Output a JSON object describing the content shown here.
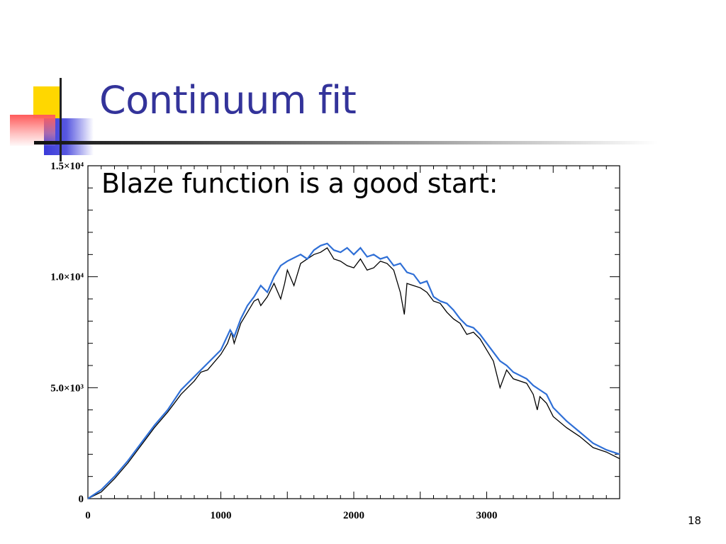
{
  "slide": {
    "title": "Continuum fit",
    "subtitle": "Blaze function is a good start:",
    "page_number": "18"
  },
  "colors": {
    "title": "#33339a",
    "spectrum": "#000000",
    "continuum": "#2f6fd6"
  },
  "chart_data": {
    "type": "line",
    "xlim": [
      0,
      4000
    ],
    "ylim": [
      0,
      15000
    ],
    "x_ticks": [
      {
        "value": 0,
        "label": "0"
      },
      {
        "value": 1000,
        "label": "1000"
      },
      {
        "value": 2000,
        "label": "2000"
      },
      {
        "value": 3000,
        "label": "3000"
      }
    ],
    "y_ticks": [
      {
        "value": 0,
        "label": "0"
      },
      {
        "value": 5000,
        "label": "5.0×10³"
      },
      {
        "value": 10000,
        "label": "1.0×10⁴"
      },
      {
        "value": 15000,
        "label": "1.5×10⁴"
      }
    ],
    "series": [
      {
        "role": "spectrum",
        "points": [
          [
            0,
            0
          ],
          [
            100,
            300
          ],
          [
            200,
            900
          ],
          [
            300,
            1600
          ],
          [
            400,
            2400
          ],
          [
            500,
            3200
          ],
          [
            600,
            3900
          ],
          [
            650,
            4300
          ],
          [
            700,
            4700
          ],
          [
            800,
            5300
          ],
          [
            850,
            5700
          ],
          [
            900,
            5800
          ],
          [
            1000,
            6500
          ],
          [
            1050,
            7000
          ],
          [
            1080,
            7500
          ],
          [
            1100,
            7000
          ],
          [
            1150,
            7900
          ],
          [
            1200,
            8400
          ],
          [
            1250,
            8900
          ],
          [
            1280,
            9000
          ],
          [
            1300,
            8700
          ],
          [
            1350,
            9100
          ],
          [
            1400,
            9700
          ],
          [
            1450,
            9000
          ],
          [
            1480,
            9700
          ],
          [
            1500,
            10300
          ],
          [
            1550,
            9600
          ],
          [
            1600,
            10600
          ],
          [
            1650,
            10800
          ],
          [
            1700,
            11000
          ],
          [
            1750,
            11100
          ],
          [
            1800,
            11300
          ],
          [
            1850,
            10800
          ],
          [
            1900,
            10700
          ],
          [
            1950,
            10500
          ],
          [
            2000,
            10400
          ],
          [
            2050,
            10800
          ],
          [
            2100,
            10300
          ],
          [
            2150,
            10400
          ],
          [
            2200,
            10700
          ],
          [
            2250,
            10600
          ],
          [
            2300,
            10300
          ],
          [
            2350,
            9300
          ],
          [
            2380,
            8300
          ],
          [
            2400,
            9700
          ],
          [
            2450,
            9600
          ],
          [
            2500,
            9500
          ],
          [
            2550,
            9300
          ],
          [
            2600,
            8900
          ],
          [
            2650,
            8800
          ],
          [
            2700,
            8400
          ],
          [
            2750,
            8100
          ],
          [
            2800,
            7900
          ],
          [
            2850,
            7400
          ],
          [
            2900,
            7500
          ],
          [
            2950,
            7200
          ],
          [
            3000,
            6700
          ],
          [
            3050,
            6200
          ],
          [
            3100,
            5000
          ],
          [
            3150,
            5800
          ],
          [
            3200,
            5400
          ],
          [
            3300,
            5200
          ],
          [
            3350,
            4700
          ],
          [
            3380,
            4000
          ],
          [
            3400,
            4600
          ],
          [
            3450,
            4300
          ],
          [
            3500,
            3700
          ],
          [
            3600,
            3200
          ],
          [
            3700,
            2800
          ],
          [
            3800,
            2300
          ],
          [
            3900,
            2100
          ],
          [
            4000,
            1800
          ]
        ]
      },
      {
        "role": "continuum",
        "points": [
          [
            0,
            0
          ],
          [
            100,
            400
          ],
          [
            200,
            1000
          ],
          [
            300,
            1700
          ],
          [
            400,
            2500
          ],
          [
            500,
            3300
          ],
          [
            600,
            4000
          ],
          [
            700,
            4900
          ],
          [
            800,
            5500
          ],
          [
            900,
            6100
          ],
          [
            1000,
            6700
          ],
          [
            1070,
            7600
          ],
          [
            1100,
            7300
          ],
          [
            1150,
            8100
          ],
          [
            1200,
            8700
          ],
          [
            1250,
            9100
          ],
          [
            1300,
            9600
          ],
          [
            1350,
            9300
          ],
          [
            1400,
            10000
          ],
          [
            1450,
            10500
          ],
          [
            1500,
            10700
          ],
          [
            1600,
            11000
          ],
          [
            1650,
            10800
          ],
          [
            1700,
            11200
          ],
          [
            1750,
            11400
          ],
          [
            1800,
            11500
          ],
          [
            1850,
            11200
          ],
          [
            1900,
            11100
          ],
          [
            1950,
            11300
          ],
          [
            2000,
            11000
          ],
          [
            2050,
            11300
          ],
          [
            2100,
            10900
          ],
          [
            2150,
            11000
          ],
          [
            2200,
            10800
          ],
          [
            2250,
            10900
          ],
          [
            2300,
            10500
          ],
          [
            2350,
            10600
          ],
          [
            2400,
            10200
          ],
          [
            2450,
            10100
          ],
          [
            2500,
            9700
          ],
          [
            2550,
            9800
          ],
          [
            2600,
            9100
          ],
          [
            2650,
            8900
          ],
          [
            2700,
            8800
          ],
          [
            2750,
            8500
          ],
          [
            2800,
            8100
          ],
          [
            2850,
            7800
          ],
          [
            2900,
            7700
          ],
          [
            2950,
            7400
          ],
          [
            3000,
            7000
          ],
          [
            3050,
            6600
          ],
          [
            3100,
            6200
          ],
          [
            3150,
            6000
          ],
          [
            3200,
            5700
          ],
          [
            3300,
            5400
          ],
          [
            3350,
            5100
          ],
          [
            3400,
            4900
          ],
          [
            3450,
            4700
          ],
          [
            3500,
            4100
          ],
          [
            3600,
            3500
          ],
          [
            3700,
            3000
          ],
          [
            3800,
            2500
          ],
          [
            3900,
            2200
          ],
          [
            4000,
            2000
          ]
        ]
      }
    ]
  }
}
